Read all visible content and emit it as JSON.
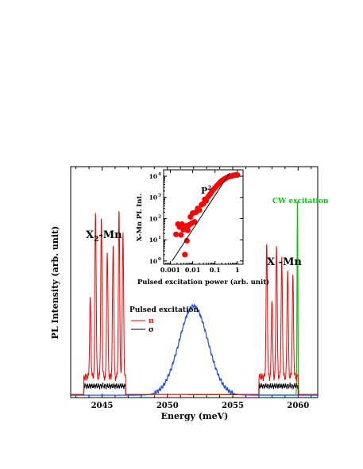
{
  "chart_data": [
    {
      "type": "line",
      "xlabel": "Energy (meV)",
      "ylabel": "PL Intensity (arb. unit)",
      "xlim": [
        2042.6,
        2061.5
      ],
      "x_ticks": [
        2045,
        2050,
        2055,
        2060
      ],
      "y_ticks_shown": false,
      "annotations": {
        "x2mn_label": "X",
        "x2mn_sub": "2",
        "x2mn_suffix": "-Mn",
        "xmn_label": "X -Mn",
        "cw_label": "CW excitation",
        "pulsed_label": "Pulsed excitation"
      },
      "series": [
        {
          "name": "π",
          "color": "#ff0000",
          "peaks": [
            {
              "x": 2044.1,
              "y": 0.34
            },
            {
              "x": 2044.5,
              "y": 0.72
            },
            {
              "x": 2044.95,
              "y": 0.68
            },
            {
              "x": 2045.4,
              "y": 0.55
            },
            {
              "x": 2045.85,
              "y": 0.58
            },
            {
              "x": 2046.3,
              "y": 0.72
            },
            {
              "x": 2046.6,
              "y": 0.62
            },
            {
              "x": 2057.6,
              "y": 0.58
            },
            {
              "x": 2058.0,
              "y": 0.34
            },
            {
              "x": 2058.35,
              "y": 0.58
            },
            {
              "x": 2058.75,
              "y": 0.51
            },
            {
              "x": 2059.2,
              "y": 0.47
            },
            {
              "x": 2059.6,
              "y": 0.44
            }
          ],
          "bands": [
            [
              2043.6,
              2046.8
            ],
            [
              2057.0,
              2060.0
            ]
          ]
        },
        {
          "name": "σ",
          "color": "#000000",
          "bands": [
            [
              2043.6,
              2046.8
            ],
            [
              2057.0,
              2060.0
            ]
          ],
          "level": 0.04
        },
        {
          "name": "",
          "color": "#1f4fe0",
          "type": "gaussian",
          "center": 2052.0,
          "sigma": 1.1,
          "amplitude": 0.39
        },
        {
          "name": "",
          "color": "#00cc00",
          "type": "cw",
          "start": 2051.6,
          "end": 2061.5,
          "peak_x": 2059.95,
          "peak_y": 0.89
        }
      ]
    },
    {
      "type": "scatter",
      "scale": "log-log",
      "xlabel": "Pulsed excitation power (arb. unit)",
      "ylabel": "X-Mn PL Int.",
      "xlim": [
        0.0005,
        1.8
      ],
      "ylim": [
        0.7,
        20000
      ],
      "x_tick_labels": [
        "0.001",
        "0.01",
        "0.1",
        "1"
      ],
      "y_tick_labels": [
        "10",
        "10",
        "10",
        "10",
        "10"
      ],
      "y_tick_exponents": [
        "0",
        "1",
        "2",
        "3",
        "4"
      ],
      "fit_label": "P",
      "fit_label_sup": "2",
      "fit_line": [
        [
          0.0012,
          1.0
        ],
        [
          0.45,
          14000
        ]
      ],
      "points": [
        {
          "x": 0.0018,
          "y": 18
        },
        {
          "x": 0.0022,
          "y": 55
        },
        {
          "x": 0.0026,
          "y": 40
        },
        {
          "x": 0.003,
          "y": 17
        },
        {
          "x": 0.0033,
          "y": 55
        },
        {
          "x": 0.0038,
          "y": 30
        },
        {
          "x": 0.0045,
          "y": 2
        },
        {
          "x": 0.005,
          "y": 45
        },
        {
          "x": 0.0055,
          "y": 9
        },
        {
          "x": 0.006,
          "y": 28
        },
        {
          "x": 0.007,
          "y": 50
        },
        {
          "x": 0.008,
          "y": 120
        },
        {
          "x": 0.009,
          "y": 60
        },
        {
          "x": 0.01,
          "y": 180
        },
        {
          "x": 0.012,
          "y": 70
        },
        {
          "x": 0.014,
          "y": 200
        },
        {
          "x": 0.017,
          "y": 300
        },
        {
          "x": 0.02,
          "y": 250
        },
        {
          "x": 0.025,
          "y": 450
        },
        {
          "x": 0.03,
          "y": 500
        },
        {
          "x": 0.035,
          "y": 800
        },
        {
          "x": 0.04,
          "y": 700
        },
        {
          "x": 0.05,
          "y": 1100
        },
        {
          "x": 0.06,
          "y": 1400
        },
        {
          "x": 0.07,
          "y": 1800
        },
        {
          "x": 0.08,
          "y": 2200
        },
        {
          "x": 0.1,
          "y": 2800
        },
        {
          "x": 0.12,
          "y": 3500
        },
        {
          "x": 0.15,
          "y": 4500
        },
        {
          "x": 0.18,
          "y": 5500
        },
        {
          "x": 0.22,
          "y": 6500
        },
        {
          "x": 0.27,
          "y": 7500
        },
        {
          "x": 0.33,
          "y": 8500
        },
        {
          "x": 0.4,
          "y": 9500
        },
        {
          "x": 0.5,
          "y": 10000
        },
        {
          "x": 0.6,
          "y": 10500
        },
        {
          "x": 0.7,
          "y": 11000
        },
        {
          "x": 0.85,
          "y": 11500
        },
        {
          "x": 1.0,
          "y": 11500
        }
      ],
      "point_color": "#ff0000"
    }
  ]
}
